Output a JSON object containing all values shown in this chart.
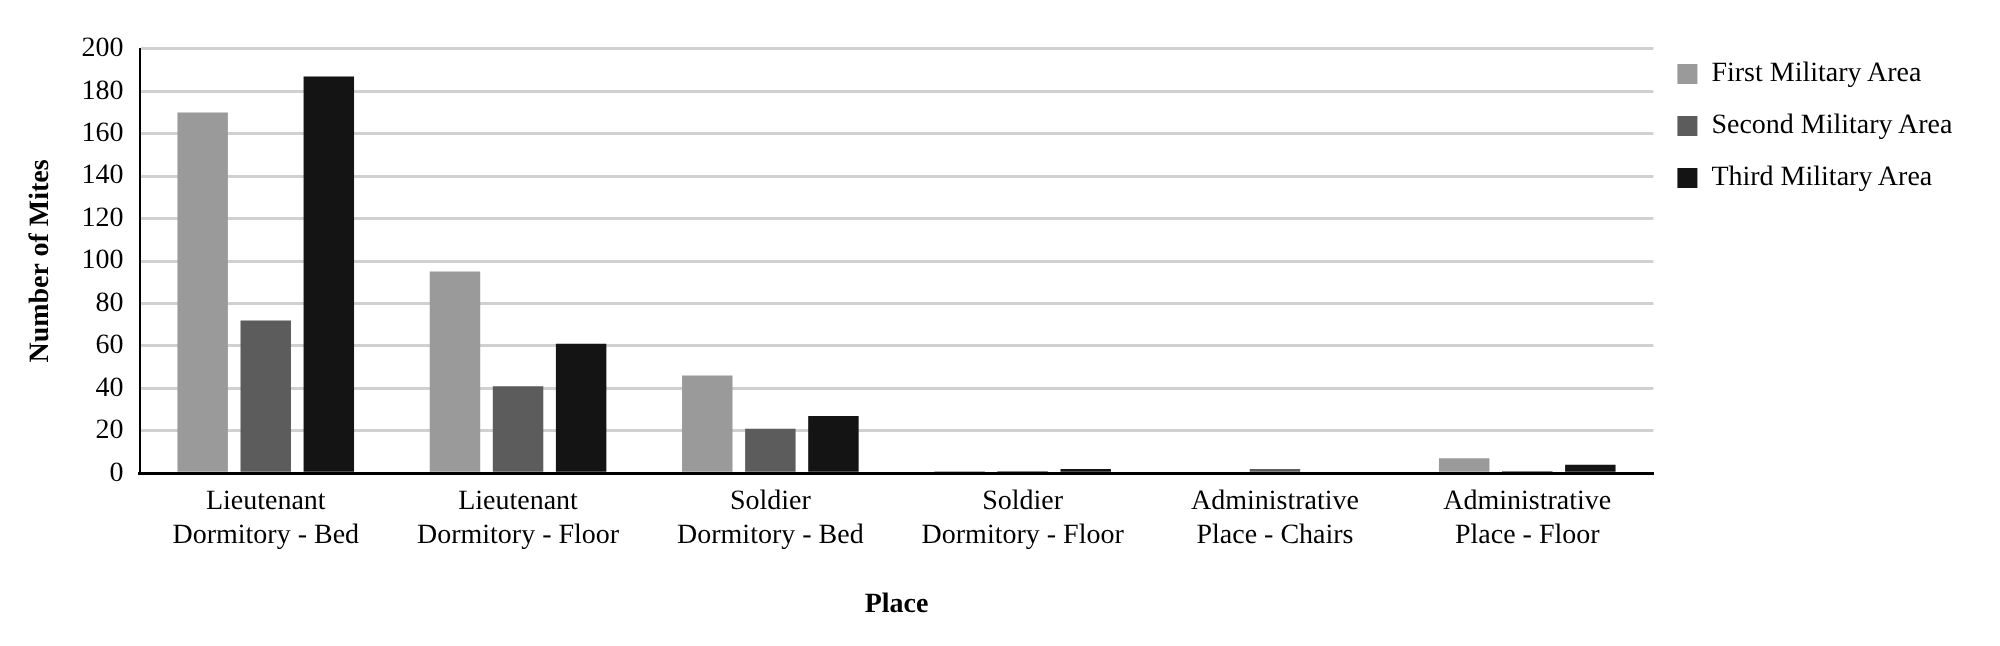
{
  "chart_data": {
    "type": "bar",
    "xlabel": "Place",
    "ylabel": "Number of Mites",
    "categories": [
      "Lieutenant Dormitory - Bed",
      "Lieutenant Dormitory - Floor",
      "Soldier Dormitory - Bed",
      "Soldier Dormitory - Floor",
      "Administrative Place - Chairs",
      "Administrative Place - Floor"
    ],
    "series": [
      {
        "name": "First Military Area",
        "color": "#9a9a9a",
        "values": [
          170,
          95,
          46,
          1,
          0,
          7
        ]
      },
      {
        "name": "Second Military Area",
        "color": "#5c5c5c",
        "values": [
          72,
          41,
          21,
          1,
          2,
          1
        ]
      },
      {
        "name": "Third Military Area",
        "color": "#141414",
        "values": [
          187,
          61,
          27,
          2,
          0,
          4
        ]
      }
    ],
    "ylim": [
      0,
      200
    ],
    "yticks": [
      0,
      20,
      40,
      60,
      80,
      100,
      120,
      140,
      160,
      180,
      200
    ],
    "grid": "y",
    "legend": "top right"
  }
}
